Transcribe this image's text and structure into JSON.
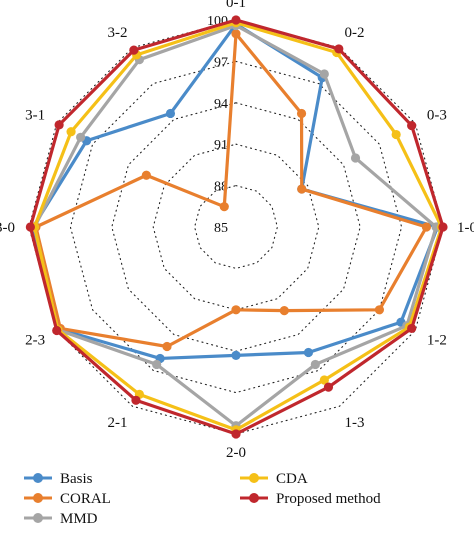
{
  "chart_data": {
    "type": "radar",
    "title": "",
    "categories": [
      "0-1",
      "0-2",
      "0-3",
      "1-0",
      "1-2",
      "1-3",
      "2-0",
      "2-1",
      "2-3",
      "3-0",
      "3-1",
      "3-2"
    ],
    "rlim": [
      85,
      100
    ],
    "ticks": [
      "85",
      "88",
      "91",
      "94",
      "97",
      "100"
    ],
    "grid": true,
    "legend_position": "bottom",
    "series": [
      {
        "name": "Basis",
        "color": "#4a8bc9",
        "values": [
          99.7,
          97.5,
          90.5,
          99.6,
          98.8,
          95.5,
          94.3,
          96.0,
          99.8,
          99.7,
          97.5,
          94.5
        ]
      },
      {
        "name": "CORAL",
        "color": "#e87f2e",
        "values": [
          99.0,
          94.5,
          90.5,
          98.8,
          97.0,
          92.0,
          91.0,
          95.0,
          99.7,
          99.5,
          92.5,
          86.7
        ]
      },
      {
        "name": "MMD",
        "color": "#a5a5a5",
        "values": [
          99.6,
          97.8,
          95.0,
          99.5,
          99.3,
          96.5,
          99.4,
          96.5,
          99.9,
          99.6,
          98.0,
          99.0
        ]
      },
      {
        "name": "CDA",
        "color": "#f5c017",
        "values": [
          99.8,
          99.6,
          98.4,
          99.9,
          99.5,
          97.8,
          99.7,
          99.0,
          99.9,
          99.6,
          98.8,
          99.4
        ]
      },
      {
        "name": "Proposed method",
        "color": "#c0272d",
        "values": [
          100.0,
          99.9,
          99.7,
          100.0,
          99.7,
          98.4,
          100.0,
          99.5,
          100.0,
          99.9,
          99.8,
          99.8
        ]
      }
    ]
  }
}
